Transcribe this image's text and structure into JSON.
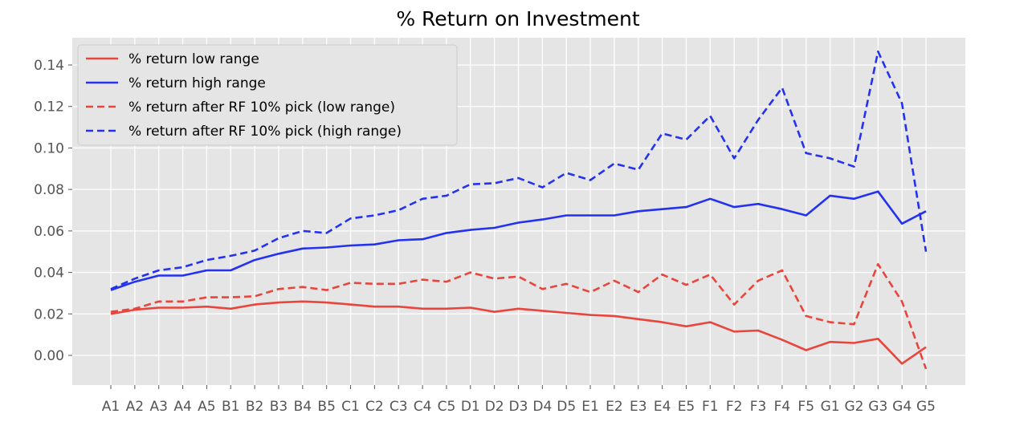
{
  "chart_data": {
    "type": "line",
    "title": "% Return on Investment",
    "xlabel": "",
    "ylabel": "",
    "categories": [
      "A1",
      "A2",
      "A3",
      "A4",
      "A5",
      "B1",
      "B2",
      "B3",
      "B4",
      "B5",
      "C1",
      "C2",
      "C3",
      "C4",
      "C5",
      "D1",
      "D2",
      "D3",
      "D4",
      "D5",
      "E1",
      "E2",
      "E3",
      "E4",
      "E5",
      "F1",
      "F2",
      "F3",
      "F4",
      "F5",
      "G1",
      "G2",
      "G3",
      "G4",
      "G5"
    ],
    "ylim": [
      -0.014,
      0.155
    ],
    "yticks": [
      0.0,
      0.02,
      0.04,
      0.06,
      0.08,
      0.1,
      0.12,
      0.14
    ],
    "ytick_labels": [
      "0.00",
      "0.02",
      "0.04",
      "0.06",
      "0.08",
      "0.10",
      "0.12",
      "0.14"
    ],
    "grid": true,
    "legend_position": "top-left",
    "series": [
      {
        "name": "% return low range",
        "color": "#e8453c",
        "dash": "solid",
        "values": [
          0.02,
          0.022,
          0.023,
          0.023,
          0.0235,
          0.0225,
          0.0245,
          0.0255,
          0.026,
          0.0255,
          0.0245,
          0.0235,
          0.0235,
          0.0225,
          0.0225,
          0.023,
          0.021,
          0.0225,
          0.0215,
          0.0205,
          0.0195,
          0.019,
          0.0175,
          0.016,
          0.014,
          0.016,
          0.0115,
          0.012,
          0.0075,
          0.0025,
          0.0065,
          0.006,
          0.008,
          -0.004,
          0.004
        ]
      },
      {
        "name": "% return high range",
        "color": "#2432f0",
        "dash": "solid",
        "values": [
          0.0315,
          0.0355,
          0.0385,
          0.0385,
          0.041,
          0.041,
          0.046,
          0.049,
          0.0515,
          0.052,
          0.053,
          0.0535,
          0.0555,
          0.056,
          0.059,
          0.0605,
          0.0615,
          0.064,
          0.0655,
          0.0675,
          0.0675,
          0.0675,
          0.0695,
          0.0705,
          0.0715,
          0.0755,
          0.0715,
          0.073,
          0.0705,
          0.0675,
          0.077,
          0.0755,
          0.079,
          0.0635,
          0.0695
        ]
      },
      {
        "name": "% return after RF 10% pick (low range)",
        "color": "#e8453c",
        "dash": "dashed",
        "values": [
          0.021,
          0.0225,
          0.026,
          0.026,
          0.028,
          0.028,
          0.0285,
          0.032,
          0.033,
          0.0315,
          0.035,
          0.0345,
          0.0345,
          0.0365,
          0.0355,
          0.04,
          0.037,
          0.038,
          0.032,
          0.0345,
          0.0305,
          0.036,
          0.0305,
          0.039,
          0.034,
          0.039,
          0.0245,
          0.036,
          0.041,
          0.019,
          0.016,
          0.015,
          0.044,
          0.026,
          -0.0065
        ]
      },
      {
        "name": "% return after RF 10% pick (high range)",
        "color": "#2432f0",
        "dash": "dashed",
        "values": [
          0.032,
          0.037,
          0.041,
          0.0425,
          0.046,
          0.048,
          0.0505,
          0.0565,
          0.06,
          0.059,
          0.066,
          0.0675,
          0.07,
          0.0755,
          0.077,
          0.0825,
          0.083,
          0.0855,
          0.081,
          0.088,
          0.0845,
          0.0925,
          0.0895,
          0.107,
          0.104,
          0.1155,
          0.095,
          0.1135,
          0.129,
          0.0975,
          0.095,
          0.091,
          0.1465,
          0.1215,
          0.05
        ]
      }
    ]
  }
}
